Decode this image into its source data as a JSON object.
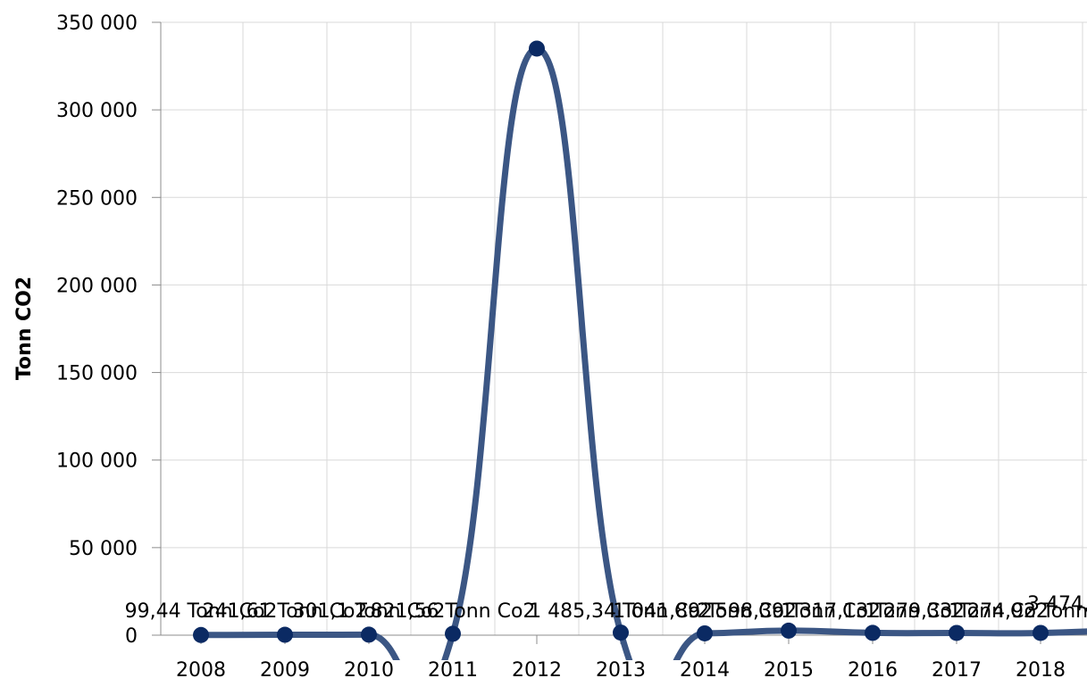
{
  "chart_data": {
    "type": "line",
    "title": "",
    "xlabel": "",
    "ylabel": "Tonn CO2",
    "x": [
      "2008",
      "2009",
      "2010",
      "2011",
      "2012",
      "2013",
      "2014",
      "2015",
      "2016",
      "2017",
      "2018"
    ],
    "series": [
      {
        "values": [
          99.44,
          241.61,
          301.1,
          821.56,
          335000,
          1485.34,
          1041.89,
          2598.39,
          1317.13,
          1279.33,
          1274.92
        ],
        "labels": [
          "99,44 Tonn Co2",
          "241,61 Tonn Co2",
          "301,1 Tonn Co2",
          "821,56 Tonn Co2",
          "",
          "1 485,34 Tonn Co2",
          "1 041,89 Tonn Co2",
          "2 598,39 Tonn Co2",
          "1 317,13 Tonn Co2",
          "1 279,33 Tonn Co2",
          "1 274,92 Tonn Co2"
        ]
      }
    ],
    "trailing_label": "3 474,",
    "yticks": [
      "0",
      "50 000",
      "100 000",
      "150 000",
      "200 000",
      "250 000",
      "300 000",
      "350 000"
    ],
    "ylim": [
      0,
      350000
    ],
    "grid": true,
    "legend": "none",
    "colors": {
      "line": "#3b5684",
      "marker": "#0b2a63",
      "grid": "#d9d9d9",
      "axis": "#8c8c8c"
    }
  }
}
